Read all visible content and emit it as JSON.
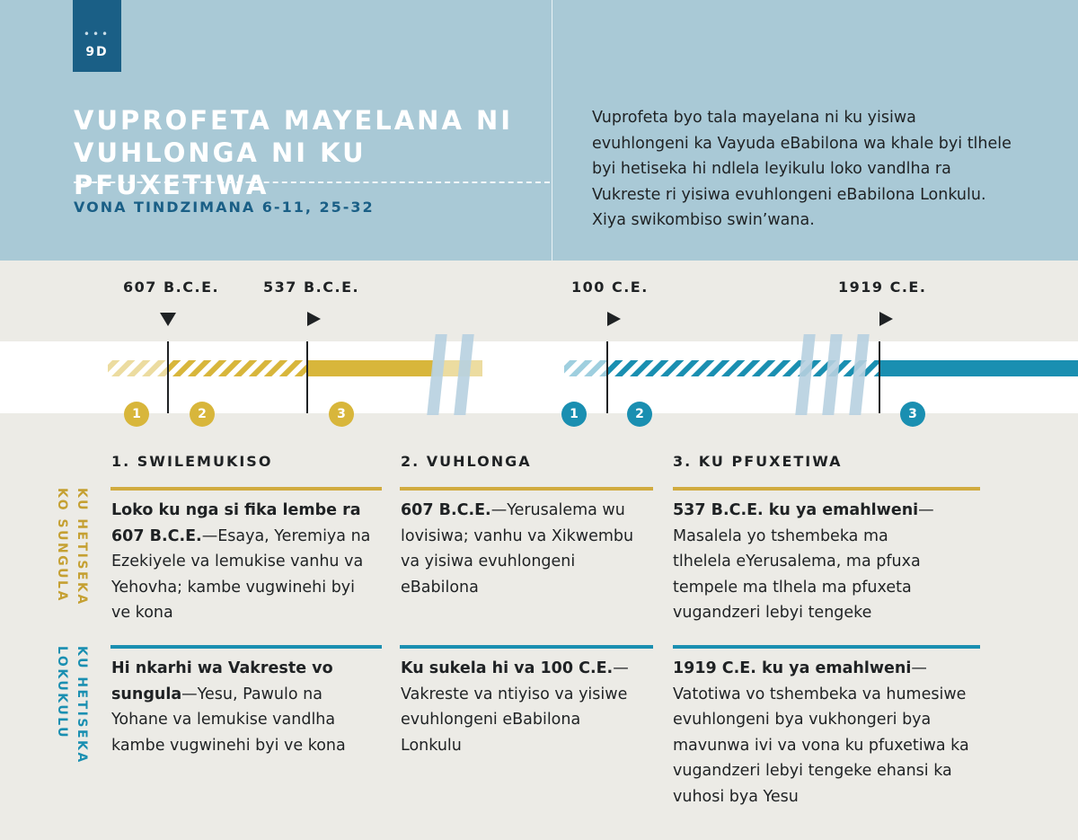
{
  "badge": {
    "dots": "•••",
    "label": "9D"
  },
  "title": {
    "line1": "VUPROFETA MAYELANA NI",
    "line2": "VUHLONGA NI KU PFUXETIWA"
  },
  "subtitle": "VONA TINDZIMANA 6-11, 25-32",
  "intro": "Vuprofeta byo tala mayelana ni ku yisiwa evuhlongeni ka Vayuda eBabilona wa khale byi tlhele byi hetiseka hi ndlela leyikulu loko vandlha ra Vukreste ri yisiwa evuhlongeni eBabilona Lonkulu. Xiya swikombiso swin’wana.",
  "timeline": {
    "years": [
      "607 B.C.E.",
      "537 B.C.E.",
      "100 C.E.",
      "1919 C.E."
    ],
    "ancient_numbers": [
      "1",
      "2",
      "3"
    ],
    "modern_numbers": [
      "1",
      "2",
      "3"
    ],
    "colors": {
      "gold": "#d8b63b",
      "blue": "#1a8fb1"
    }
  },
  "columns": [
    {
      "heading": "1. SWILEMUKISO"
    },
    {
      "heading": "2. VUHLONGA"
    },
    {
      "heading": "3. KU PFUXETIWA"
    }
  ],
  "rows": {
    "ancient": {
      "label_line1": "KU HETISEKA",
      "label_line2": "KO SUNGULA",
      "cells": [
        {
          "bold": "Loko ku nga si fika lembe ra 607 B.C.E.",
          "text": "—Esaya, Yeremiya na Ezekiyele va lemukise vanhu va Yehovha; kambe vugwinehi byi ve kona"
        },
        {
          "bold": "607 B.C.E.",
          "text": "—Yerusalema wu lovisiwa; vanhu va Xikwembu va yisiwa evuhlongeni eBabilona"
        },
        {
          "bold": "537 B.C.E. ku ya emahlweni",
          "text": "—Masalela yo tshembeka ma tlhelela eYerusalema, ma pfuxa tempele ma tlhela ma pfuxeta vugandzeri lebyi tengeke"
        }
      ]
    },
    "modern": {
      "label_line1": "KU HETISEKA",
      "label_line2": "LOKUKULU",
      "cells": [
        {
          "bold": "Hi nkarhi wa Vakreste vo sungula",
          "text": "—Yesu, Pawulo na Yohane va lemukise vandlha kambe vugwinehi byi ve kona"
        },
        {
          "bold": "Ku sukela hi va 100 C.E.",
          "text": "—Vakreste va ntiyiso va yisiwe evuhlongeni eBabilona Lonkulu"
        },
        {
          "bold": "1919 C.E. ku ya emahlweni",
          "text": "—Vatotiwa vo tshembeka va humesiwe evuhlongeni bya vukhongeri bya mavunwa ivi va vona ku pfuxetiwa ka vugandzeri lebyi tengeke ehansi ka vuhosi bya Yesu"
        }
      ]
    }
  }
}
